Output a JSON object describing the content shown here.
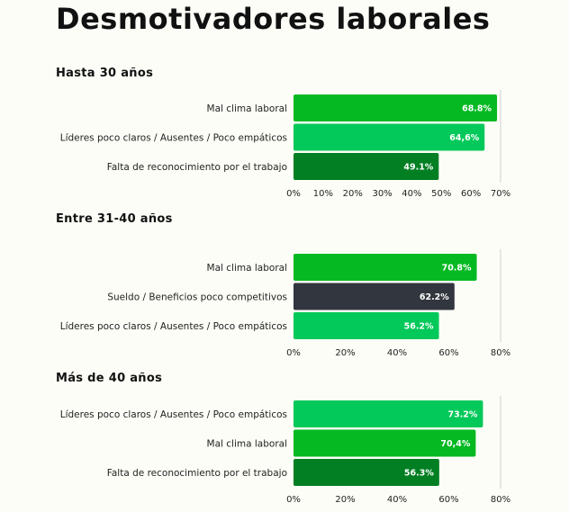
{
  "title": "Desmotivadores laborales",
  "chart_data": [
    {
      "type": "bar",
      "orientation": "horizontal",
      "title": "Hasta 30 años",
      "categories": [
        "Mal clima laboral",
        "Líderes poco claros / Ausentes / Poco empáticos",
        "Falta de reconocimiento por el trabajo"
      ],
      "values": [
        68.8,
        64.6,
        49.1
      ],
      "value_labels": [
        "68.8%",
        "64,6%",
        "49.1%"
      ],
      "colors": [
        "#04b922",
        "#03c95a",
        "#037f23"
      ],
      "xlim": [
        0,
        70
      ],
      "ticks": [
        0,
        10,
        20,
        30,
        40,
        50,
        60,
        70
      ],
      "tick_labels": [
        "0%",
        "10%",
        "20%",
        "30%",
        "40%",
        "50%",
        "60%",
        "70%"
      ],
      "grid": "end-line"
    },
    {
      "type": "bar",
      "orientation": "horizontal",
      "title": "Entre 31-40 años",
      "categories": [
        "Mal clima laboral",
        "Sueldo / Beneficios poco competitivos",
        "Líderes poco claros / Ausentes / Poco empáticos"
      ],
      "values": [
        70.8,
        62.2,
        56.2
      ],
      "value_labels": [
        "70.8%",
        "62.2%",
        "56.2%"
      ],
      "colors": [
        "#04b922",
        "#32363f",
        "#03c95a"
      ],
      "xlim": [
        0,
        80
      ],
      "ticks": [
        0,
        20,
        40,
        60,
        80
      ],
      "tick_labels": [
        "0%",
        "20%",
        "40%",
        "60%",
        "80%"
      ],
      "grid": "end-line"
    },
    {
      "type": "bar",
      "orientation": "horizontal",
      "title": "Más de 40 años",
      "categories": [
        "Líderes poco claros / Ausentes / Poco empáticos",
        "Mal clima laboral",
        "Falta de reconocimiento por el trabajo"
      ],
      "values": [
        73.2,
        70.4,
        56.3
      ],
      "value_labels": [
        "73.2%",
        "70,4%",
        "56.3%"
      ],
      "colors": [
        "#03c95a",
        "#04b922",
        "#037f23"
      ],
      "xlim": [
        0,
        80
      ],
      "ticks": [
        0,
        20,
        40,
        60,
        80
      ],
      "tick_labels": [
        "0%",
        "20%",
        "40%",
        "60%",
        "80%"
      ],
      "grid": "end-line"
    }
  ]
}
